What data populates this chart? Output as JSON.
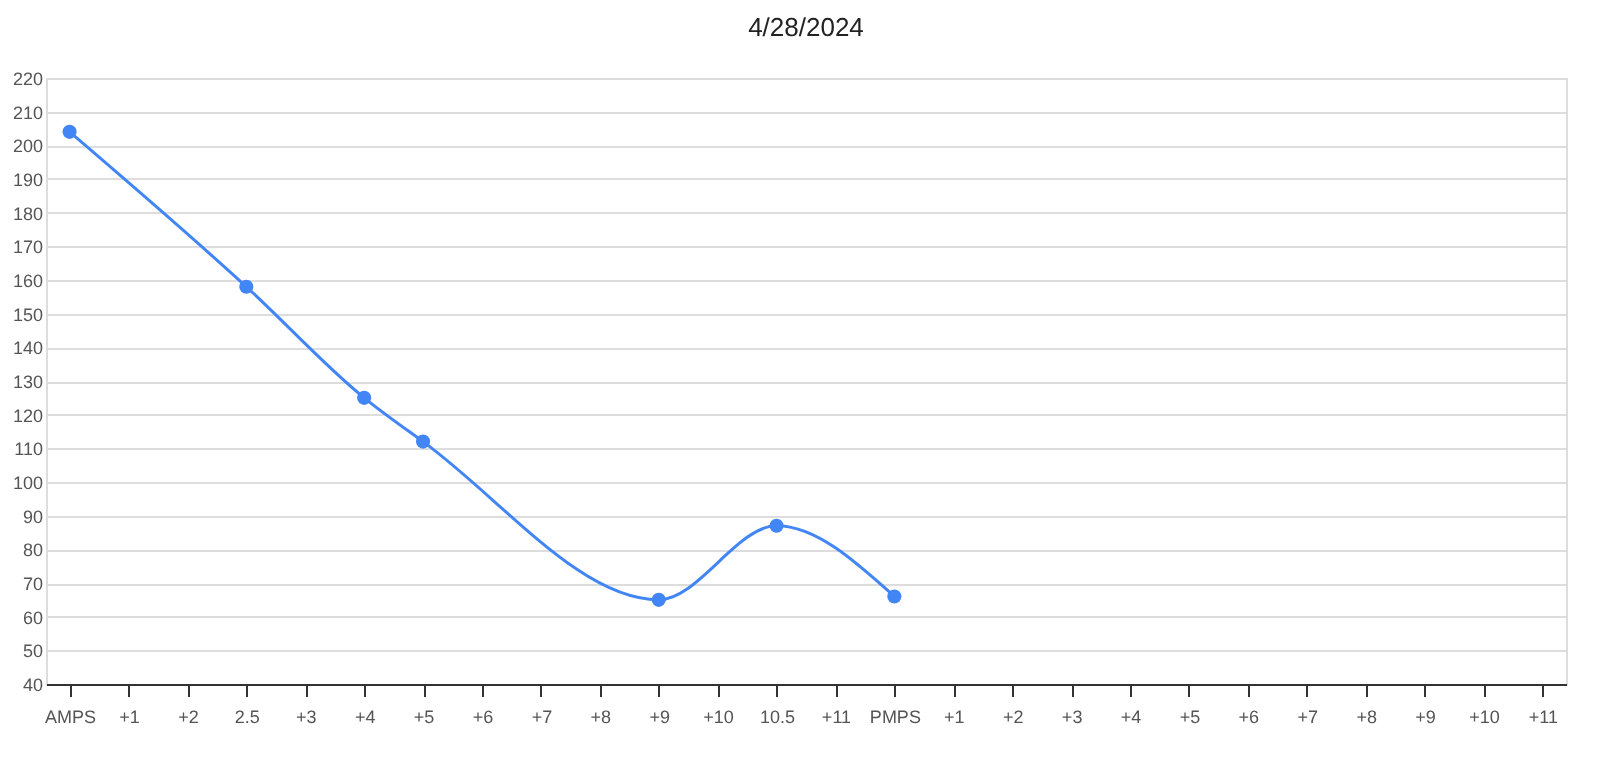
{
  "chart_data": {
    "type": "line",
    "title": "4/28/2024",
    "categories": [
      "AMPS",
      "+1",
      "+2",
      "2.5",
      "+3",
      "+4",
      "+5",
      "+6",
      "+7",
      "+8",
      "+9",
      "+10",
      "10.5",
      "+11",
      "PMPS",
      "+1",
      "+2",
      "+3",
      "+4",
      "+5",
      "+6",
      "+7",
      "+8",
      "+9",
      "+10",
      "+11"
    ],
    "series": [
      {
        "color": "#4285f4",
        "values": [
          204,
          null,
          null,
          158,
          null,
          125,
          112,
          null,
          null,
          null,
          65,
          null,
          87,
          null,
          66,
          null,
          null,
          null,
          null,
          null,
          null,
          null,
          null,
          null,
          null,
          null
        ]
      }
    ],
    "ylim": [
      40,
      220
    ],
    "yticks": [
      40,
      50,
      60,
      70,
      80,
      90,
      100,
      110,
      120,
      130,
      140,
      150,
      160,
      170,
      180,
      190,
      200,
      210,
      220
    ],
    "grid": "y",
    "marker": "circle",
    "line_style": "solid"
  }
}
